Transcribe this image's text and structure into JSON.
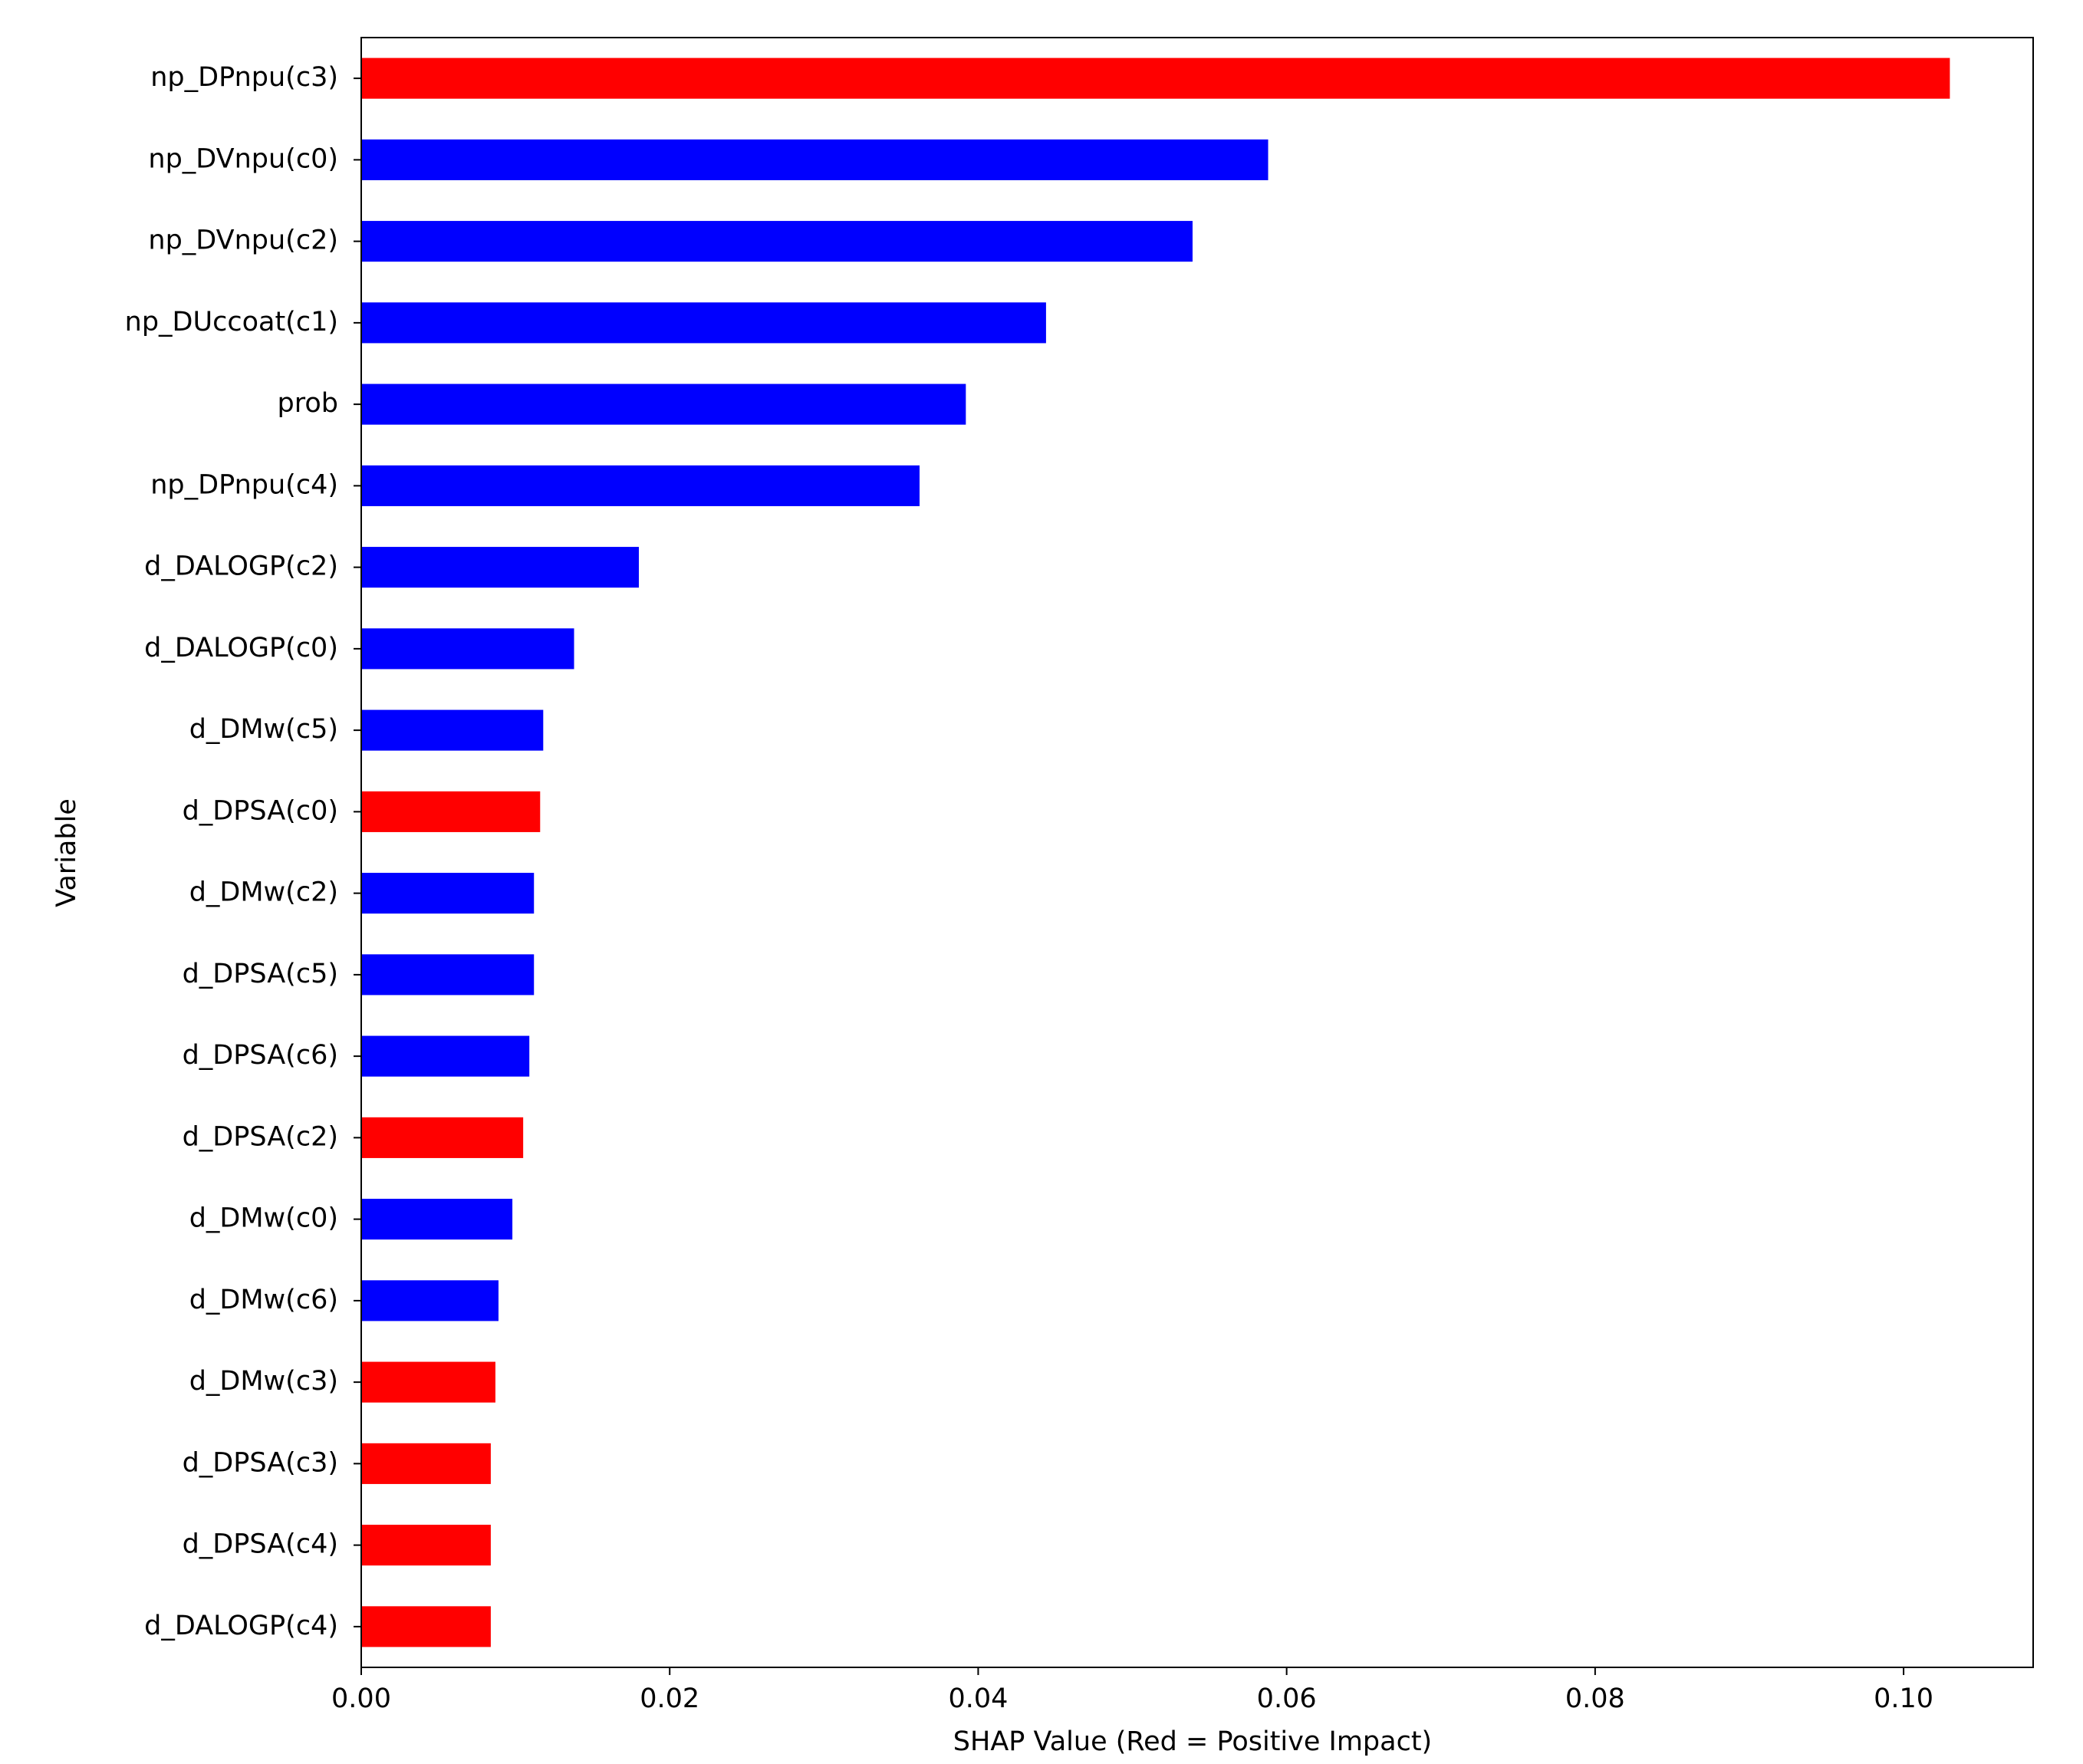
{
  "chart_data": {
    "type": "barh",
    "xlabel": "SHAP Value (Red = Positive Impact)",
    "ylabel": "Variable",
    "categories": [
      "np_DPnpu(c3)",
      "np_DVnpu(c0)",
      "np_DVnpu(c2)",
      "np_DUccoat(c1)",
      "prob",
      "np_DPnpu(c4)",
      "d_DALOGP(c2)",
      "d_DALOGP(c0)",
      "d_DMw(c5)",
      "d_DPSA(c0)",
      "d_DMw(c2)",
      "d_DPSA(c5)",
      "d_DPSA(c6)",
      "d_DPSA(c2)",
      "d_DMw(c0)",
      "d_DMw(c6)",
      "d_DMw(c3)",
      "d_DPSA(c3)",
      "d_DPSA(c4)",
      "d_DALOGP(c4)"
    ],
    "values": [
      0.103,
      0.0588,
      0.0539,
      0.0444,
      0.0392,
      0.0362,
      0.018,
      0.0138,
      0.0118,
      0.0116,
      0.0112,
      0.0112,
      0.0109,
      0.0105,
      0.0098,
      0.0089,
      0.0087,
      0.0084,
      0.0084,
      0.0084
    ],
    "colors": [
      "#ff0000",
      "#0000ff",
      "#0000ff",
      "#0000ff",
      "#0000ff",
      "#0000ff",
      "#0000ff",
      "#0000ff",
      "#0000ff",
      "#ff0000",
      "#0000ff",
      "#0000ff",
      "#0000ff",
      "#ff0000",
      "#0000ff",
      "#0000ff",
      "#ff0000",
      "#ff0000",
      "#ff0000",
      "#ff0000"
    ],
    "xlim": [
      0,
      0.1084
    ],
    "xticks": [
      {
        "value": 0,
        "label": "0.00"
      },
      {
        "value": 0.02,
        "label": "0.02"
      },
      {
        "value": 0.04,
        "label": "0.04"
      },
      {
        "value": 0.06,
        "label": "0.06"
      },
      {
        "value": 0.08,
        "label": "0.08"
      },
      {
        "value": 0.1,
        "label": "0.10"
      }
    ],
    "grid": false
  }
}
